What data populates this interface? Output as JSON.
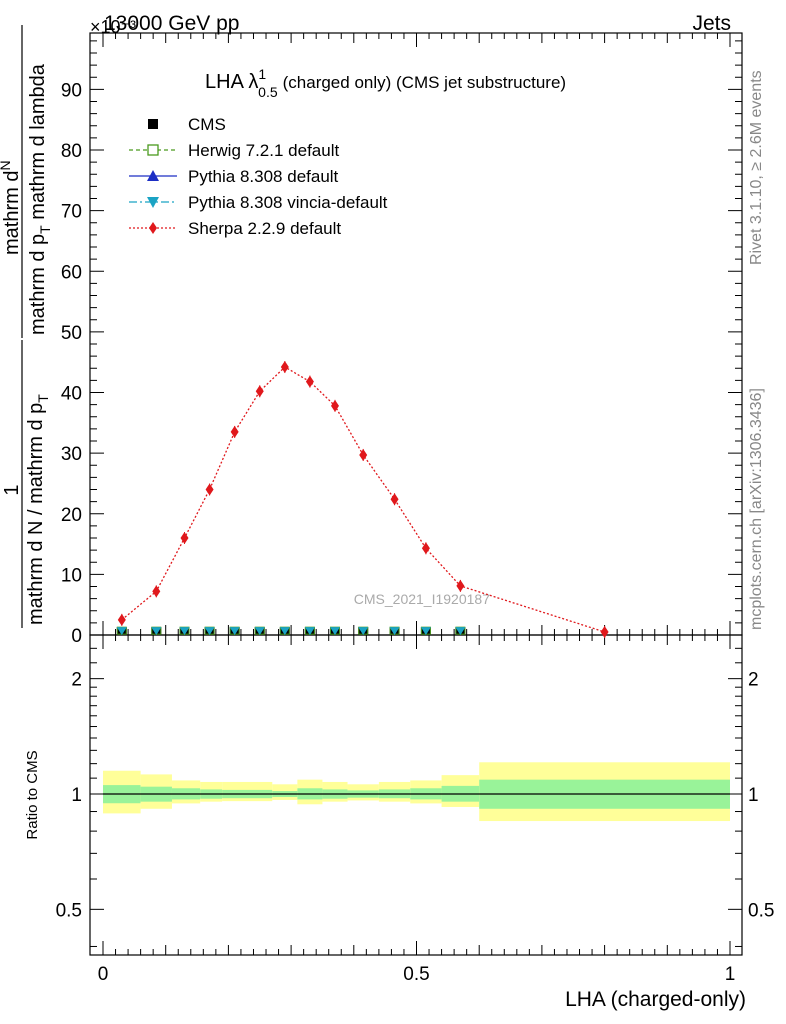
{
  "header": {
    "left": "13000 GeV pp",
    "right": "Jets",
    "scale_factor": "×10⁻³"
  },
  "side_labels": {
    "rivet": "Rivet 3.1.10, ≥ 2.6M events",
    "mcplots": "mcplots.cern.ch [arXiv:1306.3436]"
  },
  "chart_data": {
    "type": "line",
    "title_main": "LHA λ",
    "title_sup": "1",
    "title_sub": "0.5",
    "title_rest": "(charged only) (CMS jet substructure)",
    "watermark": "CMS_2021_I1920187",
    "xlabel": "LHA (charged-only)",
    "ylabel_numerator": "1",
    "ylabel_denominator": "mathrm d N / mathrm d p",
    "ylabel_denominator_sub": "T",
    "ylabel_num2": "mathrm d",
    "ylabel_num2_sup": "N",
    "ylabel_den2": "mathrm d p",
    "ylabel_den2_sub": "T",
    "ylabel_den2_rest": "mathrm d lambda",
    "xlim": [
      0,
      1
    ],
    "ylim": [
      0,
      100
    ],
    "y_multiplier": 0.001,
    "x_ticks": [
      {
        "value": 0,
        "label": "0"
      },
      {
        "value": 0.5,
        "label": "0.5"
      },
      {
        "value": 1,
        "label": "1"
      }
    ],
    "y_ticks": [
      {
        "value": 0,
        "label": "0"
      },
      {
        "value": 10,
        "label": "10"
      },
      {
        "value": 20,
        "label": "20"
      },
      {
        "value": 30,
        "label": "30"
      },
      {
        "value": 40,
        "label": "40"
      },
      {
        "value": 50,
        "label": "50"
      },
      {
        "value": 60,
        "label": "60"
      },
      {
        "value": 70,
        "label": "70"
      },
      {
        "value": 80,
        "label": "80"
      },
      {
        "value": 90,
        "label": "90"
      }
    ],
    "legend": [
      {
        "name": "CMS",
        "color": "#000000",
        "marker": "square"
      },
      {
        "name": "Herwig 7.2.1 default",
        "color": "#4a9a1e",
        "marker": "open-square",
        "dash": "4,3"
      },
      {
        "name": "Pythia 8.308 default",
        "color": "#1c2ec4",
        "marker": "triangle-up",
        "dash": ""
      },
      {
        "name": "Pythia 8.308 vincia-default",
        "color": "#1aa3c4",
        "marker": "triangle-down",
        "dash": "8,3,2,3"
      },
      {
        "name": "Sherpa 2.2.9 default",
        "color": "#e0181c",
        "marker": "diamond",
        "dash": "2,2"
      }
    ],
    "bin_edges": [
      0,
      0.04,
      0.08,
      0.12,
      0.16,
      0.2,
      0.24,
      0.28,
      0.32,
      0.36,
      0.41,
      0.46,
      0.51,
      0.56,
      0.6,
      1.0
    ],
    "cms_points": {
      "x": [
        0.03,
        0.085,
        0.13,
        0.17,
        0.21,
        0.25,
        0.29,
        0.33,
        0.37,
        0.415,
        0.465,
        0.515,
        0.57
      ],
      "y": [
        0.3,
        0.3,
        0.3,
        0.3,
        0.3,
        0.3,
        0.3,
        0.3,
        0.3,
        0.3,
        0.3,
        0.3,
        0.3
      ]
    },
    "sherpa": {
      "x": [
        0.03,
        0.085,
        0.13,
        0.17,
        0.21,
        0.25,
        0.29,
        0.33,
        0.37,
        0.415,
        0.465,
        0.515,
        0.57,
        0.8
      ],
      "y": [
        2.5,
        7.2,
        16.0,
        24.0,
        33.5,
        40.2,
        44.2,
        41.8,
        37.8,
        29.7,
        22.4,
        14.3,
        8.1,
        0.5
      ]
    },
    "ratio": {
      "ylabel": "Ratio to CMS",
      "log_ticks": [
        {
          "value": 0.5,
          "label": "0.5"
        },
        {
          "value": 1,
          "label": "1"
        },
        {
          "value": 2,
          "label": "2"
        }
      ],
      "ylim": [
        0.38,
        2.6
      ],
      "bands": [
        {
          "x0": 0.0,
          "x1": 0.06,
          "in_lo": 0.946,
          "in_hi": 1.055,
          "out_lo": 0.89,
          "out_hi": 1.15
        },
        {
          "x0": 0.06,
          "x1": 0.11,
          "in_lo": 0.955,
          "in_hi": 1.045,
          "out_lo": 0.915,
          "out_hi": 1.125
        },
        {
          "x0": 0.11,
          "x1": 0.155,
          "in_lo": 0.968,
          "in_hi": 1.035,
          "out_lo": 0.945,
          "out_hi": 1.085
        },
        {
          "x0": 0.155,
          "x1": 0.19,
          "in_lo": 0.972,
          "in_hi": 1.028,
          "out_lo": 0.955,
          "out_hi": 1.075
        },
        {
          "x0": 0.19,
          "x1": 0.27,
          "in_lo": 0.975,
          "in_hi": 1.025,
          "out_lo": 0.958,
          "out_hi": 1.075
        },
        {
          "x0": 0.27,
          "x1": 0.31,
          "in_lo": 0.982,
          "in_hi": 1.018,
          "out_lo": 0.965,
          "out_hi": 1.06
        },
        {
          "x0": 0.31,
          "x1": 0.35,
          "in_lo": 0.968,
          "in_hi": 1.035,
          "out_lo": 0.94,
          "out_hi": 1.09
        },
        {
          "x0": 0.35,
          "x1": 0.39,
          "in_lo": 0.972,
          "in_hi": 1.028,
          "out_lo": 0.955,
          "out_hi": 1.075
        },
        {
          "x0": 0.39,
          "x1": 0.44,
          "in_lo": 0.978,
          "in_hi": 1.022,
          "out_lo": 0.962,
          "out_hi": 1.06
        },
        {
          "x0": 0.44,
          "x1": 0.49,
          "in_lo": 0.975,
          "in_hi": 1.028,
          "out_lo": 0.955,
          "out_hi": 1.075
        },
        {
          "x0": 0.49,
          "x1": 0.54,
          "in_lo": 0.968,
          "in_hi": 1.035,
          "out_lo": 0.945,
          "out_hi": 1.085
        },
        {
          "x0": 0.54,
          "x1": 0.6,
          "in_lo": 0.955,
          "in_hi": 1.05,
          "out_lo": 0.925,
          "out_hi": 1.12
        },
        {
          "x0": 0.6,
          "x1": 1.0,
          "in_lo": 0.915,
          "in_hi": 1.09,
          "out_lo": 0.85,
          "out_hi": 1.21
        }
      ]
    }
  }
}
